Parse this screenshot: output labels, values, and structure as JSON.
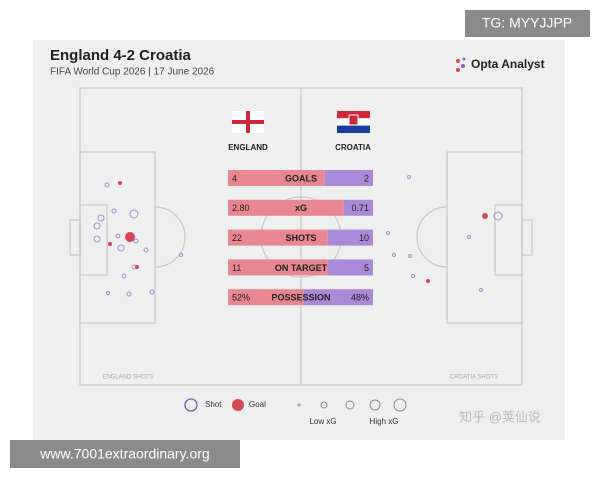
{
  "header": {
    "title": "England 4-2 Croatia",
    "subtitle": "FIFA World Cup 2026 | 17 June 2026",
    "logo": "Opta Analyst"
  },
  "teams": {
    "home": "ENGLAND",
    "away": "CROATIA",
    "home_shots": "ENGLAND SHOTS",
    "away_shots": "CROATIA SHOTS"
  },
  "stats": [
    {
      "home": "4",
      "label": "GOALS",
      "away": "2"
    },
    {
      "home": "2.80",
      "label": "xG",
      "away": "0.71"
    },
    {
      "home": "22",
      "label": "SHOTS",
      "away": "10"
    },
    {
      "home": "11",
      "label": "ON TARGET",
      "away": "5"
    },
    {
      "home": "52%",
      "label": "POSSESSION",
      "away": "48%"
    }
  ],
  "legend": {
    "shot": "Shot",
    "goal": "Goal",
    "low": "Low xG",
    "high": "High xG"
  },
  "watermarks": [
    "TG: MYYJJPP",
    "www.7001extraordinary.org",
    "知乎 @荚仙说"
  ]
}
